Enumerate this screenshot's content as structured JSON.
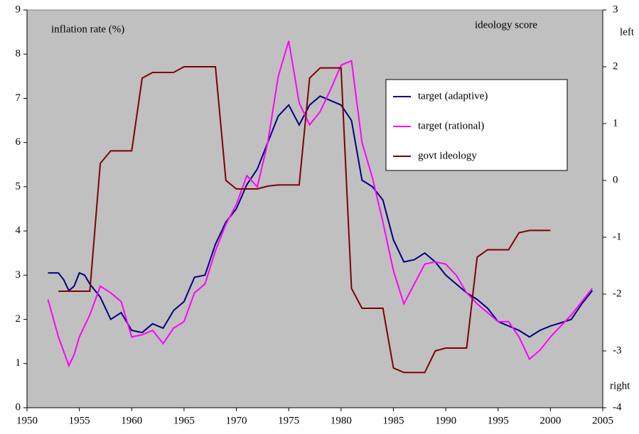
{
  "chart_data": {
    "type": "line",
    "annotations": [
      "inflation rate (%)",
      "ideology score",
      "left",
      "right"
    ],
    "xlim": [
      1950,
      2005
    ],
    "xticks": [
      1950,
      1955,
      1960,
      1965,
      1970,
      1975,
      1980,
      1985,
      1990,
      1995,
      2000,
      2005
    ],
    "ylim": [
      0,
      9
    ],
    "yticks": [
      0,
      1,
      2,
      3,
      4,
      5,
      6,
      7,
      8,
      9
    ],
    "y2lim": [
      -4,
      3
    ],
    "y2ticks": [
      -4,
      -3,
      -2,
      -1,
      0,
      1,
      2,
      3
    ],
    "grid": false,
    "background": "#c0c0c0",
    "series": [
      {
        "name": "target (adaptive)",
        "color": "#000080",
        "x": [
          1952,
          1953,
          1953.5,
          1954,
          1954.5,
          1955,
          1955.5,
          1956,
          1957,
          1958,
          1959,
          1960,
          1961,
          1962,
          1963,
          1964,
          1965,
          1966,
          1967,
          1968,
          1969,
          1970,
          1971,
          1972,
          1973,
          1974,
          1975,
          1976,
          1977,
          1978,
          1979,
          1980,
          1981,
          1982,
          1983,
          1984,
          1985,
          1986,
          1987,
          1988,
          1989,
          1990,
          1991,
          1992,
          1993,
          1994,
          1995,
          1996,
          1997,
          1998,
          1999,
          2000,
          2001,
          2002,
          2003,
          2004
        ],
        "values": [
          3.05,
          3.05,
          2.9,
          2.65,
          2.75,
          3.05,
          3.0,
          2.8,
          2.5,
          2.0,
          2.15,
          1.75,
          1.7,
          1.9,
          1.8,
          2.2,
          2.4,
          2.95,
          3.0,
          3.7,
          4.2,
          4.5,
          5.05,
          5.4,
          6.0,
          6.6,
          6.85,
          6.4,
          6.85,
          7.05,
          6.95,
          6.85,
          6.5,
          5.15,
          5.0,
          4.7,
          3.8,
          3.3,
          3.35,
          3.5,
          3.3,
          3.0,
          2.8,
          2.6,
          2.45,
          2.25,
          1.95,
          1.85,
          1.75,
          1.6,
          1.75,
          1.85,
          1.92,
          2.0,
          2.35,
          2.65
        ]
      },
      {
        "name": "target (rational)",
        "color": "#ff00ff",
        "x": [
          1952,
          1953,
          1954,
          1954.5,
          1955,
          1956,
          1957,
          1958,
          1959,
          1960,
          1961,
          1962,
          1963,
          1964,
          1965,
          1966,
          1967,
          1968,
          1969,
          1970,
          1971,
          1972,
          1973,
          1974,
          1975,
          1976,
          1977,
          1978,
          1979,
          1980,
          1981,
          1982,
          1983,
          1984,
          1985,
          1986,
          1987,
          1988,
          1989,
          1990,
          1991,
          1992,
          1993,
          1994,
          1995,
          1996,
          1997,
          1998,
          1999,
          2000,
          2001,
          2002,
          2003,
          2004
        ],
        "values": [
          2.45,
          1.6,
          0.95,
          1.2,
          1.6,
          2.1,
          2.75,
          2.6,
          2.4,
          1.6,
          1.65,
          1.75,
          1.45,
          1.8,
          1.95,
          2.6,
          2.8,
          3.55,
          4.15,
          4.6,
          5.25,
          5.0,
          6.0,
          7.5,
          8.3,
          6.9,
          6.4,
          6.7,
          7.2,
          7.75,
          7.85,
          6.0,
          5.2,
          4.2,
          3.1,
          2.35,
          2.8,
          3.25,
          3.3,
          3.25,
          3.0,
          2.6,
          2.35,
          2.15,
          1.95,
          1.95,
          1.6,
          1.1,
          1.3,
          1.6,
          1.85,
          2.1,
          2.4,
          2.7
        ]
      },
      {
        "name": "govt ideology",
        "color": "#800000",
        "axis": "y2",
        "x": [
          1953,
          1956,
          1957,
          1958,
          1960,
          1961,
          1962,
          1964,
          1965,
          1968,
          1969,
          1970,
          1972,
          1973,
          1974,
          1976,
          1977,
          1978,
          1980,
          1981,
          1982,
          1984,
          1985,
          1986,
          1988,
          1989,
          1990,
          1992,
          1993,
          1994,
          1996,
          1997,
          1998,
          2000
        ],
        "values": [
          -1.95,
          -1.95,
          0.3,
          0.52,
          0.52,
          1.8,
          1.9,
          1.9,
          2.0,
          2.0,
          0.0,
          -0.15,
          -0.15,
          -0.1,
          -0.08,
          -0.08,
          1.8,
          1.98,
          1.98,
          -1.9,
          -2.25,
          -2.25,
          -3.3,
          -3.38,
          -3.38,
          -3.0,
          -2.95,
          -2.95,
          -1.35,
          -1.22,
          -1.22,
          -0.92,
          -0.88,
          -0.88
        ]
      }
    ]
  }
}
